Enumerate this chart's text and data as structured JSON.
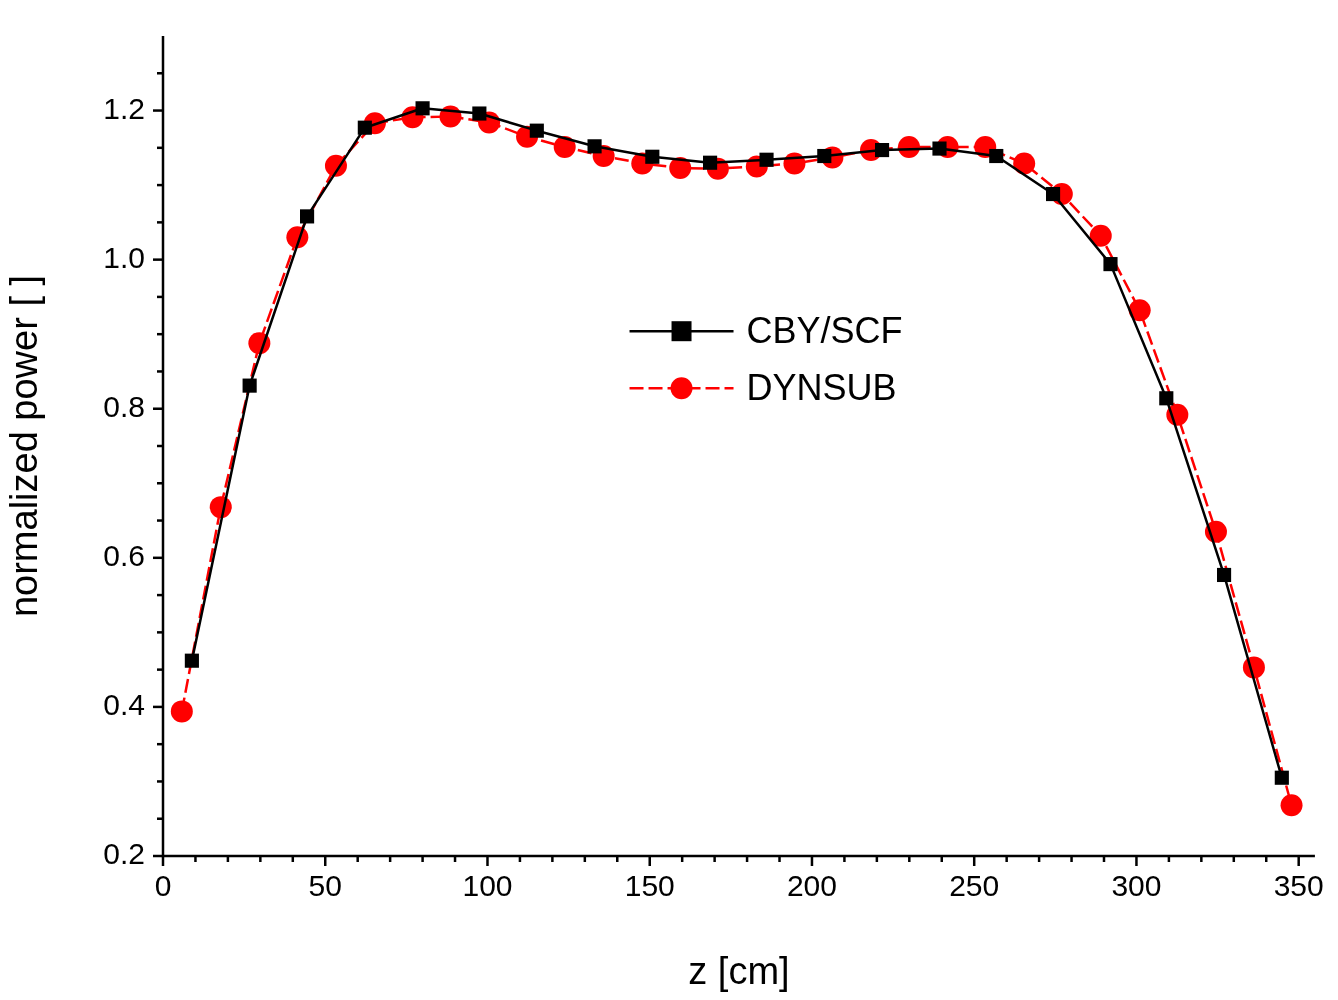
{
  "chart_data": {
    "type": "line",
    "xlabel": "z [cm]",
    "ylabel": "normalized power [ ]",
    "xlim": [
      0,
      355
    ],
    "ylim": [
      0.2,
      1.3
    ],
    "xticks": [
      0,
      {
        "value": 10,
        "label": null
      },
      {
        "value": 20,
        "label": null
      },
      {
        "value": 30,
        "label": null
      },
      {
        "value": 40,
        "label": null
      },
      50,
      {
        "value": 60,
        "label": null
      },
      {
        "value": 70,
        "label": null
      },
      {
        "value": 80,
        "label": null
      },
      {
        "value": 90,
        "label": null
      },
      100,
      {
        "value": 110,
        "label": null
      },
      {
        "value": 120,
        "label": null
      },
      {
        "value": 130,
        "label": null
      },
      {
        "value": 140,
        "label": null
      },
      150,
      {
        "value": 160,
        "label": null
      },
      {
        "value": 170,
        "label": null
      },
      {
        "value": 180,
        "label": null
      },
      {
        "value": 190,
        "label": null
      },
      200,
      {
        "value": 210,
        "label": null
      },
      {
        "value": 220,
        "label": null
      },
      {
        "value": 230,
        "label": null
      },
      {
        "value": 240,
        "label": null
      },
      250,
      {
        "value": 260,
        "label": null
      },
      {
        "value": 270,
        "label": null
      },
      {
        "value": 280,
        "label": null
      },
      {
        "value": 290,
        "label": null
      },
      300,
      {
        "value": 310,
        "label": null
      },
      {
        "value": 320,
        "label": null
      },
      {
        "value": 330,
        "label": null
      },
      {
        "value": 340,
        "label": null
      },
      350
    ],
    "yticks": [
      0.2,
      {
        "value": 0.25,
        "label": null
      },
      {
        "value": 0.3,
        "label": null
      },
      {
        "value": 0.35,
        "label": null
      },
      0.4,
      {
        "value": 0.45,
        "label": null
      },
      {
        "value": 0.5,
        "label": null
      },
      {
        "value": 0.55,
        "label": null
      },
      0.6,
      {
        "value": 0.65,
        "label": null
      },
      {
        "value": 0.7,
        "label": null
      },
      {
        "value": 0.75,
        "label": null
      },
      0.8,
      {
        "value": 0.85,
        "label": null
      },
      {
        "value": 0.9,
        "label": null
      },
      {
        "value": 0.95,
        "label": null
      },
      {
        "value": 1,
        "label": "1.0"
      },
      {
        "value": 1.05,
        "label": null
      },
      {
        "value": 1.1,
        "label": null
      },
      {
        "value": 1.15,
        "label": null
      },
      1.2,
      {
        "value": 1.25,
        "label": null
      }
    ],
    "grid": false,
    "legend": "center",
    "tick_labels": "xy",
    "series": [
      {
        "name": "CBY/SCF",
        "color": "#000000",
        "marker": "square",
        "line_style": "solid",
        "x": [
          8.9,
          26.7,
          44.4,
          62.2,
          80,
          97.5,
          115.2,
          133,
          150.8,
          168.6,
          186,
          203.8,
          221.6,
          239.3,
          256.8,
          274.3,
          292,
          309.2,
          327,
          344.8
        ],
        "values": [
          0.462,
          0.831,
          1.058,
          1.177,
          1.203,
          1.196,
          1.173,
          1.152,
          1.138,
          1.13,
          1.134,
          1.139,
          1.147,
          1.149,
          1.139,
          1.088,
          0.994,
          0.814,
          0.577,
          0.305
        ]
      },
      {
        "name": "DYNSUB",
        "color": "#ff0000",
        "marker": "circle",
        "line_style": "dashed",
        "x": [
          5.8,
          17.8,
          29.7,
          41.4,
          53.3,
          65.3,
          76.9,
          88.6,
          100.5,
          112.2,
          123.8,
          135.8,
          147.7,
          159.4,
          171,
          183,
          194.6,
          206.3,
          218.2,
          229.9,
          241.8,
          253.4,
          265.4,
          277,
          289,
          301,
          312.6,
          324.5,
          336.2,
          347.8
        ],
        "values": [
          0.394,
          0.668,
          0.888,
          1.03,
          1.126,
          1.183,
          1.191,
          1.192,
          1.184,
          1.165,
          1.151,
          1.139,
          1.129,
          1.123,
          1.122,
          1.125,
          1.129,
          1.137,
          1.147,
          1.151,
          1.151,
          1.151,
          1.129,
          1.088,
          1.032,
          0.932,
          0.792,
          0.635,
          0.453,
          0.268
        ]
      }
    ]
  }
}
